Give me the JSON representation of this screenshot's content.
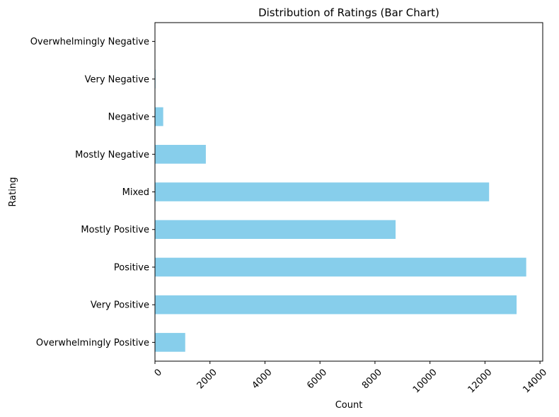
{
  "chart_data": {
    "type": "bar",
    "orientation": "horizontal",
    "title": "Distribution of Ratings (Bar Chart)",
    "xlabel": "Count",
    "ylabel": "Rating",
    "categories": [
      "Overwhelmingly Positive",
      "Very Positive",
      "Positive",
      "Mostly Positive",
      "Mixed",
      "Mostly Negative",
      "Negative",
      "Very Negative",
      "Overwhelmingly Negative"
    ],
    "values": [
      1100,
      13150,
      13500,
      8750,
      12150,
      1850,
      300,
      20,
      5
    ],
    "xlim": [
      0,
      14100
    ],
    "xticks": [
      0,
      2000,
      4000,
      6000,
      8000,
      10000,
      12000,
      14000
    ],
    "xtick_labels": [
      "0",
      "2000",
      "4000",
      "6000",
      "8000",
      "10000",
      "12000",
      "14000"
    ],
    "xtick_rotation": 45,
    "bar_color": "#87CEEB",
    "grid": false,
    "legend": "none"
  }
}
